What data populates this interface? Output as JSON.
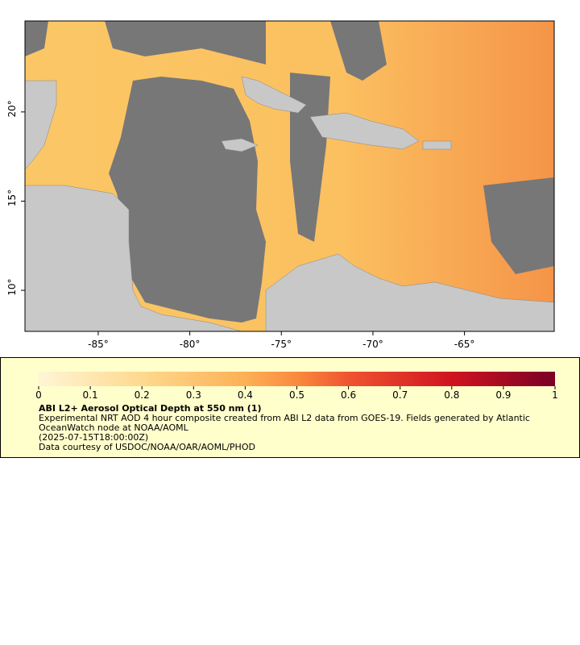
{
  "map": {
    "xlim": [
      -89.0,
      -60.1
    ],
    "ylim": [
      7.7,
      25.1
    ],
    "xticks": [
      {
        "value": -85,
        "label": "-85°"
      },
      {
        "value": -80,
        "label": "-80°"
      },
      {
        "value": -75,
        "label": "-75°"
      },
      {
        "value": -70,
        "label": "-70°"
      },
      {
        "value": -65,
        "label": "-65°"
      }
    ],
    "yticks": [
      {
        "value": 10,
        "label": "10°"
      },
      {
        "value": 15,
        "label": "15°"
      },
      {
        "value": 20,
        "label": "20°"
      }
    ]
  },
  "legend": {
    "range": [
      0,
      1
    ],
    "ticks": [
      0,
      0.1,
      0.2,
      0.3,
      0.4,
      0.5,
      0.6,
      0.7,
      0.8,
      0.9,
      1
    ],
    "title": "ABI L2+ Aerosol Optical Depth at 550 nm (1)",
    "description": "Experimental NRT AOD 4 hour composite created from ABI L2 data from GOES-19. Fields generated by Atlantic OceanWatch node at NOAA/AOML",
    "time": "(2025-07-15T18:00:00Z)",
    "credit": "Data courtesy of USDOC/NOAA/OAR/AOML/PHOD"
  }
}
